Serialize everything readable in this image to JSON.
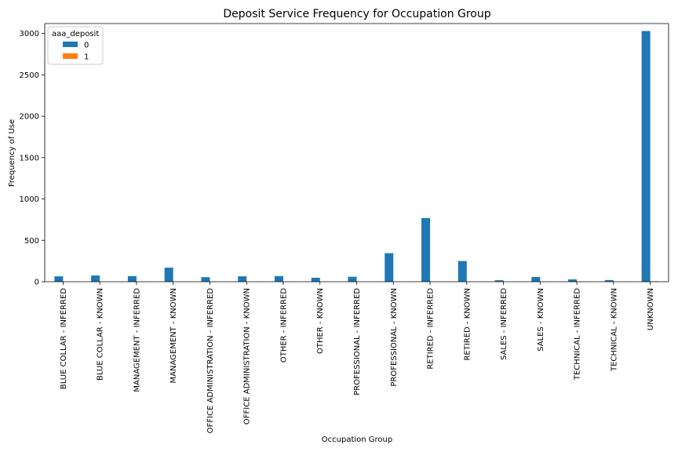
{
  "chart_data": {
    "type": "bar",
    "title": "Deposit Service Frequency for Occupation Group",
    "xlabel": "Occupation Group",
    "ylabel": "Frequency of Use",
    "ylim": [
      0,
      3120
    ],
    "yticks": [
      0,
      500,
      1000,
      1500,
      2000,
      2500,
      3000
    ],
    "grid": false,
    "legend": {
      "title": "aaa_deposit",
      "placement": "top-left"
    },
    "categories": [
      "BLUE COLLAR - INFERRED",
      "BLUE COLLAR - KNOWN",
      "MANAGEMENT - INFERRED",
      "MANAGEMENT - KNOWN",
      "OFFICE ADMINISTRATION - INFERRED",
      "OFFICE ADMINISTRATION - KNOWN",
      "OTHER - INFERRED",
      "OTHER - KNOWN",
      "PROFESSIONAL - INFERRED",
      "PROFESSIONAL - KNOWN",
      "RETIRED - INFERRED",
      "RETIRED - KNOWN",
      "SALES - INFERRED",
      "SALES - KNOWN",
      "TECHNICAL - INFERRED",
      "TECHNICAL - KNOWN",
      "UNKNOWN"
    ],
    "series": [
      {
        "name": "0",
        "color": "#1f77b4",
        "values": [
          65,
          75,
          68,
          170,
          55,
          65,
          68,
          48,
          60,
          345,
          770,
          250,
          18,
          57,
          28,
          20,
          3030
        ]
      },
      {
        "name": "1",
        "color": "#ff7f0e",
        "values": [
          0,
          0,
          0,
          0,
          0,
          0,
          0,
          0,
          0,
          0,
          0,
          0,
          0,
          0,
          0,
          0,
          6
        ]
      }
    ]
  }
}
